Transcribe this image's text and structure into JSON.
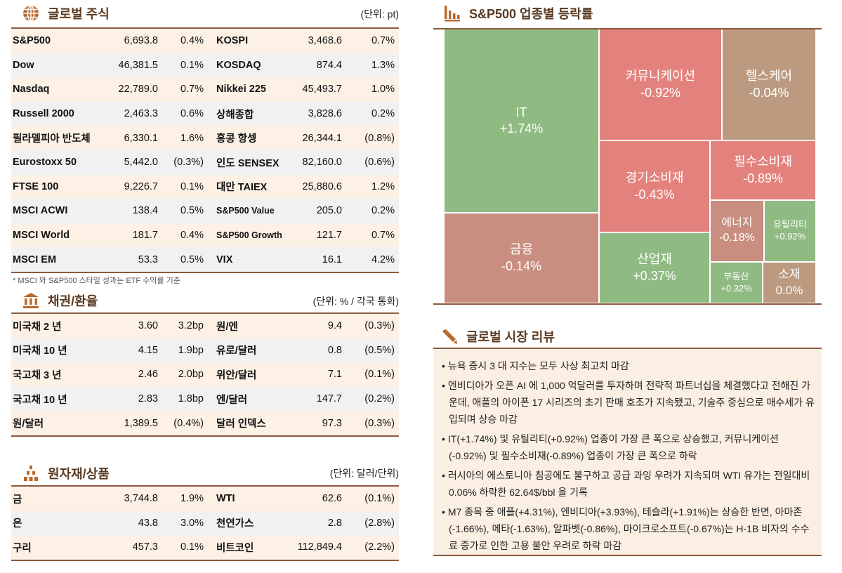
{
  "equities": {
    "title": "글로벌 주식",
    "unit": "(단위: pt)",
    "rows": [
      [
        "S&P500",
        "6,693.8",
        "0.4%",
        "KOSPI",
        "3,468.6",
        "0.7%"
      ],
      [
        "Dow",
        "46,381.5",
        "0.1%",
        "KOSDAQ",
        "874.4",
        "1.3%"
      ],
      [
        "Nasdaq",
        "22,789.0",
        "0.7%",
        "Nikkei 225",
        "45,493.7",
        "1.0%"
      ],
      [
        "Russell 2000",
        "2,463.3",
        "0.6%",
        "상해종합",
        "3,828.6",
        "0.2%"
      ],
      [
        "필라델피아 반도체",
        "6,330.1",
        "1.6%",
        "홍콩 항셍",
        "26,344.1",
        "(0.8%)"
      ],
      [
        "Eurostoxx 50",
        "5,442.0",
        "(0.3%)",
        "인도 SENSEX",
        "82,160.0",
        "(0.6%)"
      ],
      [
        "FTSE 100",
        "9,226.7",
        "0.1%",
        "대만 TAIEX",
        "25,880.6",
        "1.2%"
      ],
      [
        "MSCI ACWI",
        "138.4",
        "0.5%",
        "S&P500 Value",
        "205.0",
        "0.2%"
      ],
      [
        "MSCI World",
        "181.7",
        "0.4%",
        "S&P500 Growth",
        "121.7",
        "0.7%"
      ],
      [
        "MSCI EM",
        "53.3",
        "0.5%",
        "VIX",
        "16.1",
        "4.2%"
      ]
    ],
    "footnote": "* MSCI 와 S&P500 스타일 성과는 ETF 수익률 기준"
  },
  "bonds": {
    "title": "채권/환율",
    "unit": "(단위: % / 각국 통화)",
    "rows": [
      [
        "미국채 2 년",
        "3.60",
        "3.2bp",
        "원/엔",
        "9.4",
        "(0.3%)"
      ],
      [
        "미국채 10 년",
        "4.15",
        "1.9bp",
        "유로/달러",
        "0.8",
        "(0.5%)"
      ],
      [
        "국고채 3 년",
        "2.46",
        "2.0bp",
        "위안/달러",
        "7.1",
        "(0.1%)"
      ],
      [
        "국고채 10 년",
        "2.83",
        "1.8bp",
        "엔/달러",
        "147.7",
        "(0.2%)"
      ],
      [
        "원/달러",
        "1,389.5",
        "(0.4%)",
        "달러 인덱스",
        "97.3",
        "(0.3%)"
      ]
    ]
  },
  "commodities": {
    "title": "원자재/상품",
    "unit": "(단위: 달러/단위)",
    "rows": [
      [
        "금",
        "3,744.8",
        "1.9%",
        "WTI",
        "62.6",
        "(0.1%)"
      ],
      [
        "은",
        "43.8",
        "3.0%",
        "천연가스",
        "2.8",
        "(2.8%)"
      ],
      [
        "구리",
        "457.3",
        "0.1%",
        "비트코인",
        "112,849.4",
        "(2.2%)"
      ]
    ]
  },
  "treemap": {
    "title": "S&P500 업종별 등락률",
    "colors": {
      "up": "#8fbb82",
      "down": "#e3827d",
      "flat": "#bb9a80",
      "mild_down": "#c98e80"
    },
    "sectors": [
      {
        "name": "IT",
        "change": "+1.74%",
        "tone": "up"
      },
      {
        "name": "금융",
        "change": "-0.14%",
        "tone": "mild_down"
      },
      {
        "name": "커뮤니케이션",
        "change": "-0.92%",
        "tone": "down"
      },
      {
        "name": "헬스케어",
        "change": "-0.04%",
        "tone": "flat"
      },
      {
        "name": "경기소비재",
        "change": "-0.43%",
        "tone": "down"
      },
      {
        "name": "산업재",
        "change": "+0.37%",
        "tone": "up"
      },
      {
        "name": "필수소비재",
        "change": "-0.89%",
        "tone": "down"
      },
      {
        "name": "에너지",
        "change": "-0.18%",
        "tone": "mild_down"
      },
      {
        "name": "유틸리티",
        "change": "+0.92%",
        "tone": "up"
      },
      {
        "name": "부동산",
        "change": "+0.32%",
        "tone": "up"
      },
      {
        "name": "소재",
        "change": "0.0%",
        "tone": "flat"
      }
    ]
  },
  "review": {
    "title": "글로벌 시장 리뷰",
    "items": [
      "뉴욕 증시 3 대 지수는 모두 사상 최고치 마감",
      "엔비디아가 오픈 AI 에 1,000 억달러를 투자하며 전략적 파트너십을 체결했다고 전해진 가운데, 애플의 아이폰 17 시리즈의 초기 판매 호조가 지속됐고, 기술주 중심으로 매수세가 유입되며 상승 마감",
      "IT(+1.74%) 및 유틸리티(+0.92%) 업종이 가장 큰 폭으로 상승했고, 커뮤니케이션(-0.92%) 및 필수소비재(-0.89%) 업종이 가장 큰 폭으로 하락",
      "러시아의 에스토니아 침공에도 불구하고 공급 과잉 우려가 지속되며 WTI 유가는 전일대비 0.06% 하락한 62.64$/bbl 을 기록",
      "M7 종목 중 애플(+4.31%), 엔비디아(+3.93%), 테슬라(+1.91%)는 상승한 반면, 아마존(-1.66%), 메타(-1.63%), 알파벳(-0.86%), 마이크로소프트(-0.67%)는 H-1B 비자의 수수료 증가로 인한 고용 불안 우려로 하락 마감"
    ]
  }
}
